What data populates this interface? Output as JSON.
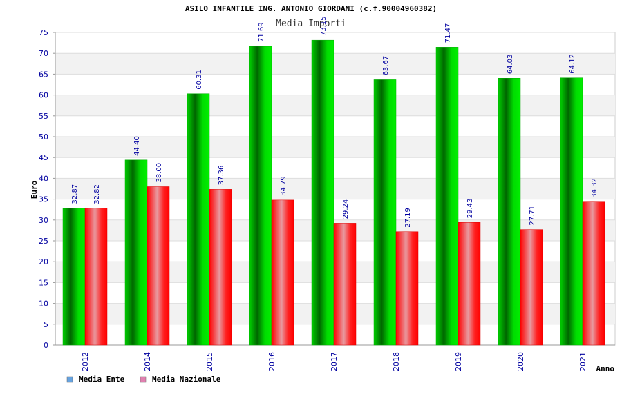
{
  "chart_data": {
    "type": "bar",
    "title": "ASILO INFANTILE ING. ANTONIO GIORDANI (c.f.90004960382)",
    "subtitle": "Media Importi",
    "xlabel": "Anno",
    "ylabel": "Euro",
    "ylim": [
      0,
      75
    ],
    "ytick_step": 5,
    "categories": [
      "2012",
      "2014",
      "2015",
      "2016",
      "2017",
      "2018",
      "2019",
      "2020",
      "2021"
    ],
    "series": [
      {
        "name": "Media Ente",
        "values": [
          32.87,
          44.4,
          60.31,
          71.69,
          73.15,
          63.67,
          71.47,
          64.03,
          64.12
        ],
        "labels": [
          "32.87",
          "44.40",
          "60.31",
          "71.69",
          "73.15",
          "63.67",
          "71.47",
          "64.03",
          "64.12"
        ],
        "color": "#00c000",
        "legend_color": "#66a3e0"
      },
      {
        "name": "Media Nazionale",
        "values": [
          32.82,
          38.0,
          37.36,
          34.79,
          29.24,
          27.19,
          29.43,
          27.71,
          34.32
        ],
        "labels": [
          "32.82",
          "38.00",
          "37.36",
          "34.79",
          "29.24",
          "27.19",
          "29.43",
          "27.71",
          "34.32"
        ],
        "color": "#ff0000",
        "legend_color": "#e080b0"
      }
    ],
    "grid": true,
    "legend_position": "bottom-left"
  }
}
